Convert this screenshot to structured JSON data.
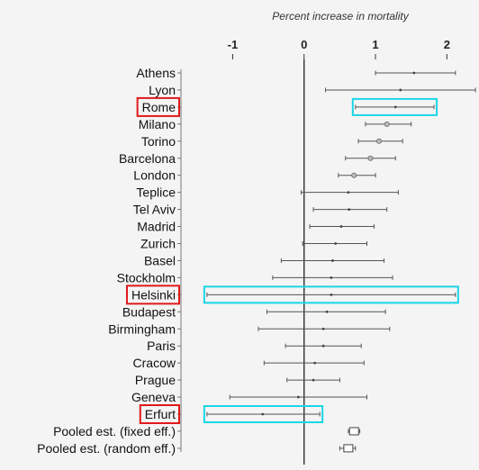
{
  "chart_data": {
    "type": "forest",
    "title": "Percent increase in mortality",
    "xlabel": "",
    "ylabel": "",
    "xlim": [
      -1.8,
      2.45
    ],
    "ticks": [
      {
        "value": -1,
        "label": "-1"
      },
      {
        "value": 0,
        "label": "0"
      },
      {
        "value": 1,
        "label": "1"
      },
      {
        "value": 2,
        "label": "2"
      }
    ],
    "grid": false,
    "reference_line": 0,
    "rows": [
      {
        "label": "Athens",
        "est": 1.54,
        "lo": 1.0,
        "hi": 2.12,
        "marker": "point",
        "highlight_label": false,
        "highlight_ci": false
      },
      {
        "label": "Lyon",
        "est": 1.35,
        "lo": 0.3,
        "hi": 2.4,
        "marker": "point",
        "highlight_label": false,
        "highlight_ci": false
      },
      {
        "label": "Rome",
        "est": 1.28,
        "lo": 0.72,
        "hi": 1.82,
        "marker": "point",
        "highlight_label": true,
        "highlight_ci": true
      },
      {
        "label": "Milano",
        "est": 1.16,
        "lo": 0.86,
        "hi": 1.5,
        "marker": "circle",
        "highlight_label": false,
        "highlight_ci": false
      },
      {
        "label": "Torino",
        "est": 1.05,
        "lo": 0.76,
        "hi": 1.38,
        "marker": "circle",
        "highlight_label": false,
        "highlight_ci": false
      },
      {
        "label": "Barcelona",
        "est": 0.93,
        "lo": 0.58,
        "hi": 1.28,
        "marker": "circle",
        "highlight_label": false,
        "highlight_ci": false
      },
      {
        "label": "London",
        "est": 0.7,
        "lo": 0.48,
        "hi": 1.0,
        "marker": "circle",
        "highlight_label": false,
        "highlight_ci": false
      },
      {
        "label": "Teplice",
        "est": 0.62,
        "lo": -0.04,
        "hi": 1.32,
        "marker": "point",
        "highlight_label": false,
        "highlight_ci": false
      },
      {
        "label": "Tel Aviv",
        "est": 0.63,
        "lo": 0.13,
        "hi": 1.16,
        "marker": "point",
        "highlight_label": false,
        "highlight_ci": false
      },
      {
        "label": "Madrid",
        "est": 0.52,
        "lo": 0.08,
        "hi": 0.98,
        "marker": "point",
        "highlight_label": false,
        "highlight_ci": false
      },
      {
        "label": "Zurich",
        "est": 0.44,
        "lo": -0.02,
        "hi": 0.88,
        "marker": "point",
        "highlight_label": false,
        "highlight_ci": false
      },
      {
        "label": "Basel",
        "est": 0.4,
        "lo": -0.32,
        "hi": 1.12,
        "marker": "point",
        "highlight_label": false,
        "highlight_ci": false
      },
      {
        "label": "Stockholm",
        "est": 0.38,
        "lo": -0.44,
        "hi": 1.24,
        "marker": "point",
        "highlight_label": false,
        "highlight_ci": false
      },
      {
        "label": "Helsinki",
        "est": 0.38,
        "lo": -1.36,
        "hi": 2.12,
        "marker": "point",
        "highlight_label": true,
        "highlight_ci": true
      },
      {
        "label": "Budapest",
        "est": 0.32,
        "lo": -0.52,
        "hi": 1.14,
        "marker": "point",
        "highlight_label": false,
        "highlight_ci": false
      },
      {
        "label": "Birmingham",
        "est": 0.27,
        "lo": -0.64,
        "hi": 1.2,
        "marker": "point",
        "highlight_label": false,
        "highlight_ci": false
      },
      {
        "label": "Paris",
        "est": 0.27,
        "lo": -0.26,
        "hi": 0.8,
        "marker": "point",
        "highlight_label": false,
        "highlight_ci": false
      },
      {
        "label": "Cracow",
        "est": 0.15,
        "lo": -0.56,
        "hi": 0.84,
        "marker": "point",
        "highlight_label": false,
        "highlight_ci": false
      },
      {
        "label": "Prague",
        "est": 0.13,
        "lo": -0.24,
        "hi": 0.5,
        "marker": "point",
        "highlight_label": false,
        "highlight_ci": false
      },
      {
        "label": "Geneva",
        "est": -0.08,
        "lo": -1.04,
        "hi": 0.88,
        "marker": "point",
        "highlight_label": false,
        "highlight_ci": false
      },
      {
        "label": "Erfurt",
        "est": -0.58,
        "lo": -1.36,
        "hi": 0.22,
        "marker": "point",
        "highlight_label": true,
        "highlight_ci": true
      },
      {
        "label": "Pooled est. (fixed eff.)",
        "est": 0.7,
        "lo": 0.62,
        "hi": 0.78,
        "marker": "box",
        "highlight_label": false,
        "highlight_ci": false
      },
      {
        "label": "Pooled est. (random eff.)",
        "est": 0.62,
        "lo": 0.5,
        "hi": 0.72,
        "marker": "box",
        "highlight_label": false,
        "highlight_ci": false
      }
    ],
    "colors": {
      "ci_line": "#555555",
      "zero_line": "#222222",
      "label_box": "#e0191b",
      "ci_box": "#1ad6e6",
      "background": "#f4f4f4"
    }
  }
}
